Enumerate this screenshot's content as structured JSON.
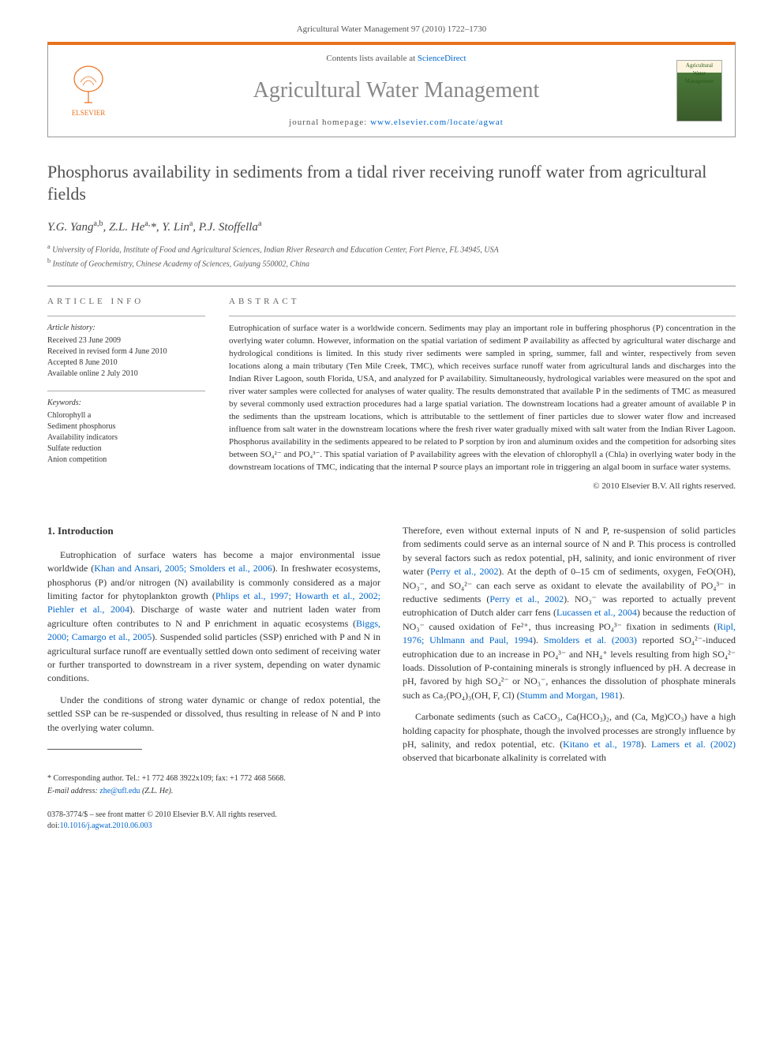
{
  "header": {
    "citation_line": "Agricultural Water Management 97 (2010) 1722–1730",
    "contents_prefix": "Contents lists available at ",
    "contents_link": "ScienceDirect",
    "journal_title": "Agricultural Water Management",
    "homepage_prefix": "journal homepage: ",
    "homepage_url": "www.elsevier.com/locate/agwat",
    "publisher_name": "ELSEVIER",
    "cover_text": "Agricultural Water Management"
  },
  "article": {
    "title": "Phosphorus availability in sediments from a tidal river receiving runoff water from agricultural fields",
    "authors_html": "Y.G. Yang<sup>a,b</sup>, Z.L. He<sup>a,</sup><span class='star'>*</span>, Y. Lin<sup>a</sup>, P.J. Stoffella<sup>a</sup>",
    "affiliations": [
      "University of Florida, Institute of Food and Agricultural Sciences, Indian River Research and Education Center, Fort Pierce, FL 34945, USA",
      "Institute of Geochemistry, Chinese Academy of Sciences, Guiyang 550002, China"
    ],
    "aff_sup": [
      "a",
      "b"
    ]
  },
  "info": {
    "heading": "article info",
    "history_label": "Article history:",
    "history": [
      "Received 23 June 2009",
      "Received in revised form 4 June 2010",
      "Accepted 8 June 2010",
      "Available online 2 July 2010"
    ],
    "keywords_label": "Keywords:",
    "keywords": [
      "Chlorophyll a",
      "Sediment phosphorus",
      "Availability indicators",
      "Sulfate reduction",
      "Anion competition"
    ]
  },
  "abstract": {
    "heading": "abstract",
    "text": "Eutrophication of surface water is a worldwide concern. Sediments may play an important role in buffering phosphorus (P) concentration in the overlying water column. However, information on the spatial variation of sediment P availability as affected by agricultural water discharge and hydrological conditions is limited. In this study river sediments were sampled in spring, summer, fall and winter, respectively from seven locations along a main tributary (Ten Mile Creek, TMC), which receives surface runoff water from agricultural lands and discharges into the Indian River Lagoon, south Florida, USA, and analyzed for P availability. Simultaneously, hydrological variables were measured on the spot and river water samples were collected for analyses of water quality. The results demonstrated that available P in the sediments of TMC as measured by several commonly used extraction procedures had a large spatial variation. The downstream locations had a greater amount of available P in the sediments than the upstream locations, which is attributable to the settlement of finer particles due to slower water flow and increased influence from salt water in the downstream locations where the fresh river water gradually mixed with salt water from the Indian River Lagoon. Phosphorus availability in the sediments appeared to be related to P sorption by iron and aluminum oxides and the competition for adsorbing sites between SO₄²⁻ and PO₄³⁻. This spatial variation of P availability agrees with the elevation of chlorophyll a (Chla) in overlying water body in the downstream locations of TMC, indicating that the internal P source plays an important role in triggering an algal boom in surface water systems.",
    "copyright": "© 2010 Elsevier B.V. All rights reserved."
  },
  "body": {
    "intro_heading": "1. Introduction",
    "col1_p1_pre": "Eutrophication of surface waters has become a major environmental issue worldwide (",
    "col1_p1_cite1": "Khan and Ansari, 2005; Smolders et al., 2006",
    "col1_p1_mid1": "). In freshwater ecosystems, phosphorus (P) and/or nitrogen (N) availability is commonly considered as a major limiting factor for phytoplankton growth (",
    "col1_p1_cite2": "Phlips et al., 1997; Howarth et al., 2002; Piehler et al., 2004",
    "col1_p1_mid2": "). Discharge of waste water and nutrient laden water from agriculture often contributes to N and P enrichment in aquatic ecosystems (",
    "col1_p1_cite3": "Biggs, 2000; Camargo et al., 2005",
    "col1_p1_post": "). Suspended solid particles (SSP) enriched with P and N in agricultural surface runoff are eventually settled down onto sediment of receiving water or further transported to downstream in a river system, depending on water dynamic conditions.",
    "col1_p2": "Under the conditions of strong water dynamic or change of redox potential, the settled SSP can be re-suspended or dissolved, thus resulting in release of N and P into the overlying water column.",
    "col2_p1_pre": "Therefore, even without external inputs of N and P, re-suspension of solid particles from sediments could serve as an internal source of N and P. This process is controlled by several factors such as redox potential, pH, salinity, and ionic environment of river water (",
    "col2_p1_cite1": "Perry et al., 2002",
    "col2_p1_mid1": "). At the depth of 0–15 cm of sediments, oxygen, FeO(OH), NO₃⁻, and SO₄²⁻ can each serve as oxidant to elevate the availability of PO₄³⁻ in reductive sediments (",
    "col2_p1_cite2": "Perry et al., 2002",
    "col2_p1_mid2": "). NO₃⁻ was reported to actually prevent eutrophication of Dutch alder carr fens (",
    "col2_p1_cite3": "Lucassen et al., 2004",
    "col2_p1_mid3": ") because the reduction of NO₃⁻ caused oxidation of Fe²⁺, thus increasing PO₄³⁻ fixation in sediments (",
    "col2_p1_cite4": "Ripl, 1976; Uhlmann and Paul, 1994",
    "col2_p1_mid4": "). ",
    "col2_p1_cite5": "Smolders et al. (2003)",
    "col2_p1_mid5": " reported SO₄²⁻-induced eutrophication due to an increase in PO₄³⁻ and NH₄⁺ levels resulting from high SO₄²⁻ loads. Dissolution of P-containing minerals is strongly influenced by pH. A decrease in pH, favored by high SO₄²⁻ or NO₃⁻, enhances the dissolution of phosphate minerals such as Ca₅(PO₄)₃(OH, F, Cl) (",
    "col2_p1_cite6": "Stumm and Morgan, 1981",
    "col2_p1_post": ").",
    "col2_p2_pre": "Carbonate sediments (such as CaCO₃, Ca(HCO₃)₂, and (Ca, Mg)CO₃) have a high holding capacity for phosphate, though the involved processes are strongly influence by pH, salinity, and redox potential, etc. (",
    "col2_p2_cite1": "Kitano et al., 1978",
    "col2_p2_mid1": "). ",
    "col2_p2_cite2": "Lamers et al. (2002)",
    "col2_p2_post": " observed that bicarbonate alkalinity is correlated with"
  },
  "footer": {
    "corr_label": "* Corresponding author. Tel.: +1 772 468 3922x109; fax: +1 772 468 5668.",
    "email_label": "E-mail address:",
    "email": "zhe@ufl.edu",
    "email_suffix": "(Z.L. He).",
    "front_matter": "0378-3774/$ – see front matter © 2010 Elsevier B.V. All rights reserved.",
    "doi_label": "doi:",
    "doi": "10.1016/j.agwat.2010.06.003"
  },
  "colors": {
    "accent_orange": "#e9711c",
    "link_blue": "#0066cc",
    "text_gray": "#505050"
  }
}
